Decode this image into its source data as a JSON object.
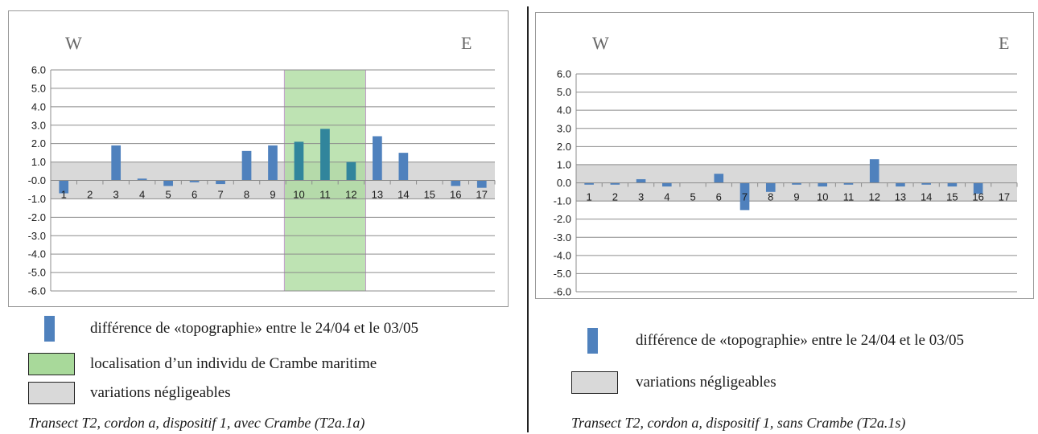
{
  "chart_data": [
    {
      "type": "bar",
      "direction_left": "W",
      "direction_right": "E",
      "categories": [
        "1",
        "2",
        "3",
        "4",
        "5",
        "6",
        "7",
        "8",
        "9",
        "10",
        "11",
        "12",
        "13",
        "14",
        "15",
        "16",
        "17"
      ],
      "yticks": [
        "6.0",
        "5.0",
        "4.0",
        "3.0",
        "2.0",
        "1.0",
        "-0.0",
        "-1.0",
        "-2.0",
        "-3.0",
        "-4.0",
        "-5.0",
        "-6.0"
      ],
      "ylim": [
        -6,
        6
      ],
      "series": [
        {
          "values": [
            -0.7,
            0,
            1.9,
            0.1,
            -0.3,
            -0.1,
            -0.2,
            1.6,
            1.9,
            2.1,
            2.8,
            1.0,
            2.4,
            1.5,
            0,
            -0.3,
            -0.4
          ]
        }
      ],
      "negligible_band": [
        -1,
        1
      ],
      "highlight_categories": [
        "10",
        "12"
      ],
      "grid": true
    },
    {
      "type": "bar",
      "direction_left": "W",
      "direction_right": "E",
      "categories": [
        "1",
        "2",
        "3",
        "4",
        "5",
        "6",
        "7",
        "8",
        "9",
        "10",
        "11",
        "12",
        "13",
        "14",
        "15",
        "16",
        "17"
      ],
      "yticks": [
        "6.0",
        "5.0",
        "4.0",
        "3.0",
        "2.0",
        "1.0",
        "0.0",
        "-1.0",
        "-2.0",
        "-3.0",
        "-4.0",
        "-5.0",
        "-6.0"
      ],
      "ylim": [
        -6,
        6
      ],
      "series": [
        {
          "values": [
            -0.1,
            -0.1,
            0.2,
            -0.2,
            0,
            0.5,
            -1.5,
            -0.5,
            -0.1,
            -0.2,
            -0.1,
            1.3,
            -0.2,
            -0.1,
            -0.2,
            -0.6,
            0
          ]
        }
      ],
      "negligible_band": [
        -1,
        1
      ],
      "grid": true
    }
  ],
  "colors": {
    "bar": "#4f81bd",
    "highlight_bar": "#31859c",
    "negligible_band": "#d9d9d9",
    "crambe_zone": "#a8d99a",
    "grid": "#8c8c8c"
  },
  "legend_left": {
    "bar_label": "différence de «topographie» entre le 24/04 et le 03/05",
    "crambe_label": "localisation d’un individu de Crambe maritime",
    "band_label": "variations négligeables"
  },
  "legend_right": {
    "bar_label": "différence de «topographie» entre le 24/04 et le 03/05",
    "band_label": "variations négligeables"
  },
  "captions": {
    "left": "Transect T2, cordon a, dispositif 1, avec Crambe (T2a.1a)",
    "right": "Transect T2, cordon a, dispositif 1, sans Crambe (T2a.1s)"
  }
}
